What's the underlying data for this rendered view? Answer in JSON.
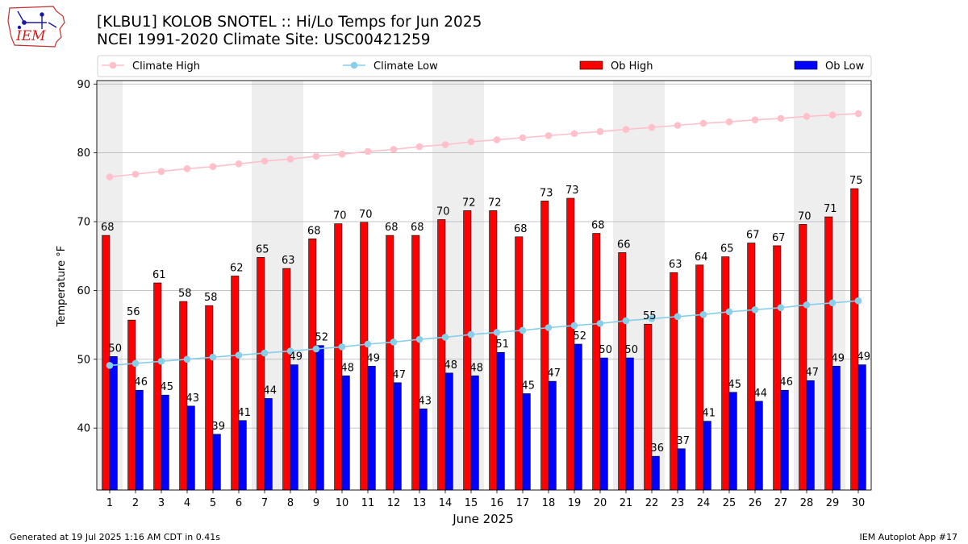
{
  "header": {
    "title_line1": "[KLBU1] KOLOB SNOTEL :: Hi/Lo Temps for Jun 2025",
    "title_line2": "NCEI 1991-2020 Climate Site: USC00421259",
    "logo_text": "IEM"
  },
  "footer": {
    "generated": "Generated at 19 Jul 2025 1:16 AM CDT in 0.41s",
    "app": "IEM Autoplot App #17"
  },
  "colors": {
    "climate_high": "#ffc0cb",
    "climate_low": "#87ceeb",
    "ob_high": "#ff0000",
    "ob_low": "#0000ff",
    "weekend_shade": "#eeeeee",
    "grid": "#b0b0b0"
  },
  "chart_data": {
    "type": "bar",
    "title": "[KLBU1] KOLOB SNOTEL :: Hi/Lo Temps for Jun 2025",
    "subtitle": "NCEI 1991-2020 Climate Site: USC00421259",
    "xlabel": "June 2025",
    "ylabel": "Temperature °F",
    "categories": [
      "1",
      "2",
      "3",
      "4",
      "5",
      "6",
      "7",
      "8",
      "9",
      "10",
      "11",
      "12",
      "13",
      "14",
      "15",
      "16",
      "17",
      "18",
      "19",
      "20",
      "21",
      "22",
      "23",
      "24",
      "25",
      "26",
      "27",
      "28",
      "29",
      "30"
    ],
    "ylim": [
      31,
      90.5
    ],
    "yticks": [
      40,
      50,
      60,
      70,
      80,
      90
    ],
    "grid": "horizontal",
    "legend_placement": "top, above plot",
    "shaded_days": [
      1,
      7,
      8,
      14,
      15,
      21,
      22,
      28,
      29
    ],
    "series": [
      {
        "name": "Ob High",
        "kind": "bar",
        "color": "#ff0000",
        "values": [
          68.0,
          55.7,
          61.1,
          58.4,
          57.8,
          62.1,
          64.8,
          63.2,
          67.5,
          69.7,
          69.9,
          68.0,
          68.0,
          70.3,
          71.6,
          71.6,
          67.8,
          73.0,
          73.4,
          68.3,
          65.5,
          55.1,
          62.6,
          63.7,
          64.9,
          66.9,
          66.5,
          69.6,
          70.7,
          74.8
        ],
        "labels": [
          "68",
          "56",
          "61",
          "58",
          "58",
          "62",
          "65",
          "63",
          "68",
          "70",
          "70",
          "68",
          "68",
          "70",
          "72",
          "72",
          "68",
          "73",
          "73",
          "68",
          "66",
          "55",
          "63",
          "64",
          "65",
          "67",
          "67",
          "70",
          "71",
          "75"
        ]
      },
      {
        "name": "Ob Low",
        "kind": "bar",
        "color": "#0000ff",
        "values": [
          50.4,
          45.5,
          44.8,
          43.2,
          39.1,
          41.1,
          44.3,
          49.2,
          52.0,
          47.6,
          49.0,
          46.6,
          42.8,
          48.0,
          47.6,
          51.0,
          45.0,
          46.8,
          52.2,
          50.2,
          50.2,
          35.9,
          37.0,
          41.0,
          45.2,
          43.9,
          45.5,
          46.9,
          49.0,
          49.2
        ],
        "labels": [
          "50",
          "46",
          "45",
          "43",
          "39",
          "41",
          "44",
          "49",
          "52",
          "48",
          "49",
          "47",
          "43",
          "48",
          "48",
          "51",
          "45",
          "47",
          "52",
          "50",
          "50",
          "36",
          "37",
          "41",
          "45",
          "44",
          "46",
          "47",
          "49",
          "49"
        ]
      },
      {
        "name": "Climate High",
        "kind": "line",
        "color": "#ffc0cb",
        "values": [
          76.5,
          76.9,
          77.3,
          77.7,
          78.0,
          78.4,
          78.8,
          79.1,
          79.5,
          79.8,
          80.2,
          80.5,
          80.9,
          81.2,
          81.6,
          81.9,
          82.2,
          82.5,
          82.8,
          83.1,
          83.4,
          83.7,
          84.0,
          84.3,
          84.5,
          84.8,
          85.0,
          85.3,
          85.5,
          85.7
        ]
      },
      {
        "name": "Climate Low",
        "kind": "line",
        "color": "#87ceeb",
        "values": [
          49.1,
          49.4,
          49.7,
          50.0,
          50.3,
          50.6,
          50.9,
          51.2,
          51.5,
          51.8,
          52.2,
          52.5,
          52.9,
          53.2,
          53.6,
          53.9,
          54.2,
          54.6,
          54.9,
          55.2,
          55.6,
          55.9,
          56.2,
          56.5,
          56.9,
          57.2,
          57.5,
          57.9,
          58.2,
          58.5
        ]
      }
    ]
  }
}
